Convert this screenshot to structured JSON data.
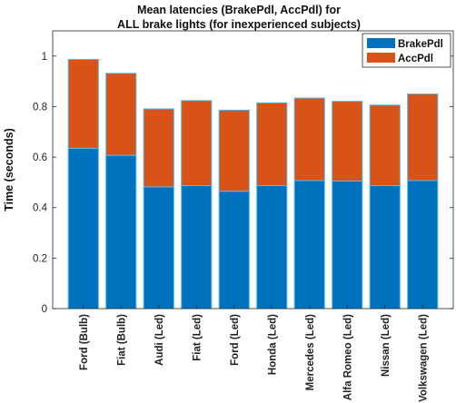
{
  "chart_data": {
    "type": "bar",
    "stacked": true,
    "title": [
      "Mean latencies (BrakePdl, AccPdl) for",
      "ALL brake lights (for inexperienced subjects)"
    ],
    "xlabel": "",
    "ylabel": "Time (seconds)",
    "ylim": [
      0,
      1.1
    ],
    "yticks": [
      0,
      0.2,
      0.4,
      0.6,
      0.8,
      1
    ],
    "ytick_labels": [
      "0",
      "0.2",
      "0.4",
      "0.6",
      "0.8",
      "1"
    ],
    "grid": false,
    "legend_position": "top-right",
    "categories": [
      "Ford (Bulb)",
      "Fiat (Bulb)",
      "Audi (Led)",
      "Fiat (Led)",
      "Ford (Led)",
      "Honda (Led)",
      "Mercedes (Led)",
      "Alfa Romeo (Led)",
      "Nissan (Led)",
      "Volkswagen (Led)"
    ],
    "series": [
      {
        "name": "BrakePdl",
        "color": "#0072bd",
        "values": [
          0.635,
          0.607,
          0.482,
          0.487,
          0.465,
          0.487,
          0.507,
          0.505,
          0.487,
          0.507
        ]
      },
      {
        "name": "AccPdl",
        "color": "#d95319",
        "values": [
          0.352,
          0.325,
          0.309,
          0.337,
          0.321,
          0.328,
          0.327,
          0.316,
          0.319,
          0.343
        ]
      }
    ],
    "edge_color": "#4dbeee"
  }
}
